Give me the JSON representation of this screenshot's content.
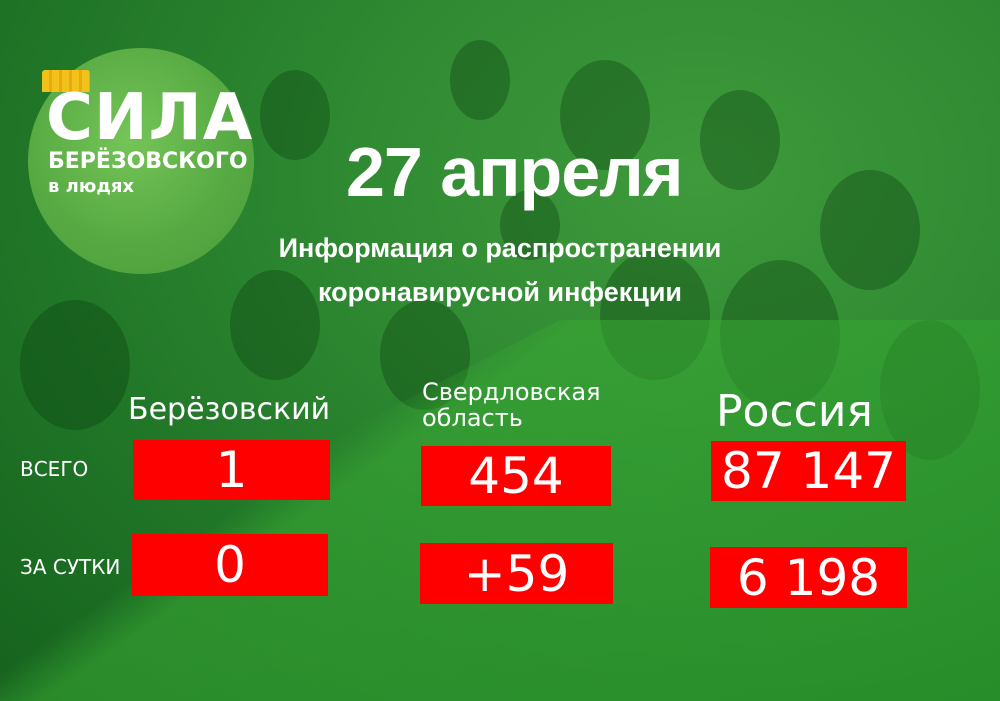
{
  "logo": {
    "title": "СИЛА",
    "subtitle": "БЕРЁЗОВСКОГО",
    "subtitle2": "в людях"
  },
  "header": {
    "date": "27 апреля",
    "subtitle": "Информация о распространении коронавирусной инфекции"
  },
  "columns": {
    "berezovsky": "Берёзовский",
    "sverdlovsk": "Свердловская область",
    "russia": "Россия"
  },
  "rows": {
    "total_label": "ВСЕГО",
    "daily_label": "ЗА СУТКИ"
  },
  "values": {
    "berezovsky_total": "1",
    "sverdlovsk_total": "454",
    "russia_total": "87 147",
    "berezovsky_daily": "0",
    "sverdlovsk_daily": "+59",
    "russia_daily": "6 198"
  },
  "colors": {
    "background": "#2f8a32",
    "box": "#ff0000",
    "logo_circle": "#5aad44",
    "crown": "#f2c21a"
  }
}
